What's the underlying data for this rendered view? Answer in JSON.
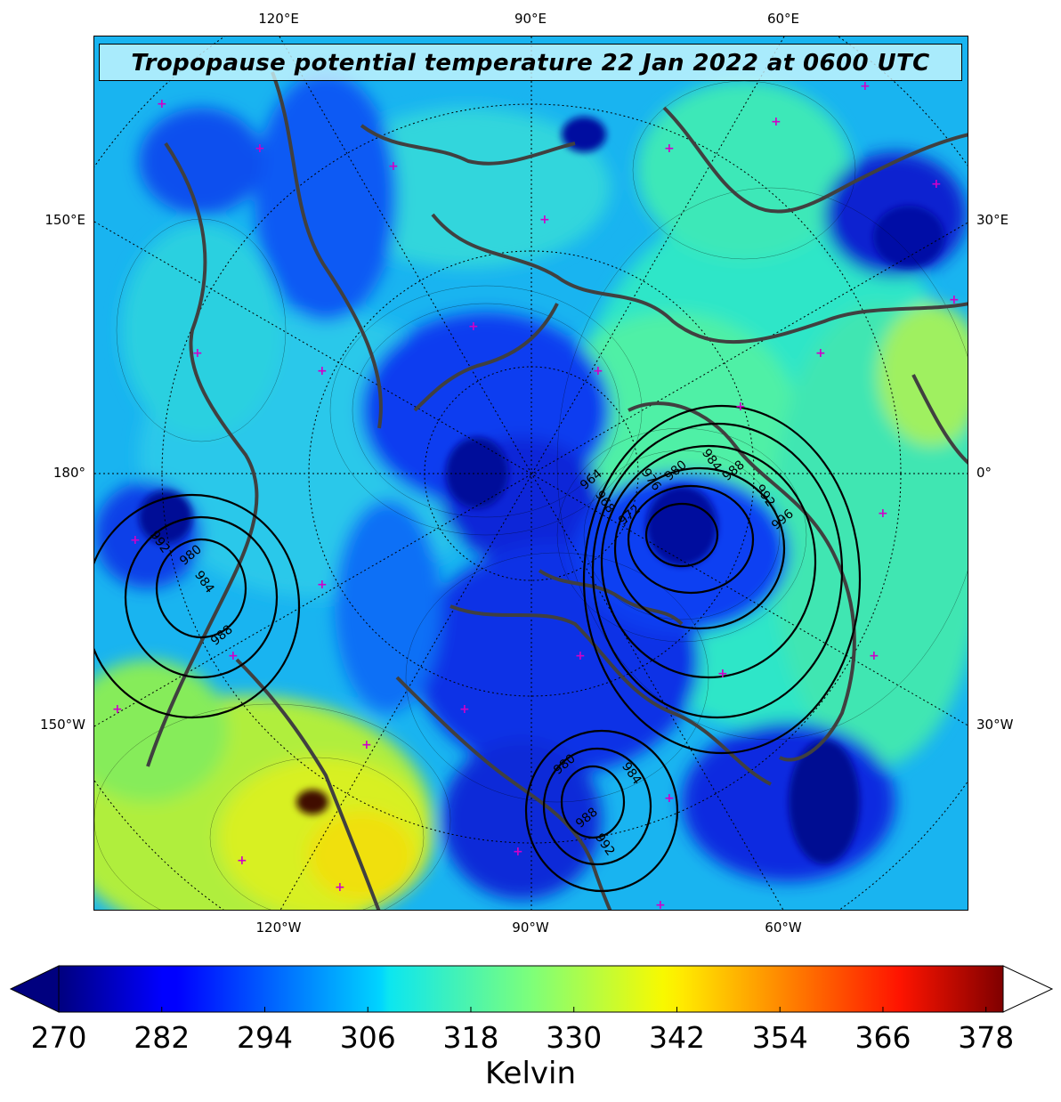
{
  "title": "Tropopause potential temperature 22 Jan 2022 at 0600 UTC",
  "map": {
    "projection": "polar stereographic (north)",
    "graticule": {
      "top_labels": [
        "120°E",
        "90°E",
        "60°E"
      ],
      "bottom_labels": [
        "120°W",
        "90°W",
        "60°W"
      ],
      "left_labels": [
        "150°E",
        "180°",
        "150°W"
      ],
      "right_labels": [
        "30°E",
        "0°",
        "30°W"
      ]
    },
    "field": "tropopause potential temperature",
    "field_units": "Kelvin",
    "overlay": "mean sea level pressure contours (hPa)",
    "pressure_systems": [
      {
        "location": "near Greenland / Iceland",
        "contour_labels": [
          964,
          968,
          972,
          976,
          980,
          984,
          988,
          992,
          996
        ]
      },
      {
        "location": "Bering Sea / Alaska",
        "contour_labels": [
          980,
          984,
          988,
          992
        ]
      },
      {
        "location": "Hudson Bay / Labrador",
        "contour_labels": [
          980,
          984,
          988,
          992
        ]
      }
    ],
    "marker_color": "#d000c8",
    "coastline_color": "#404040"
  },
  "colorbar": {
    "min": 270,
    "max": 380,
    "extend": "both",
    "colormap": "jet",
    "tick_labels": [
      "270",
      "282",
      "294",
      "306",
      "318",
      "330",
      "342",
      "354",
      "366",
      "378"
    ],
    "label": "Kelvin"
  }
}
